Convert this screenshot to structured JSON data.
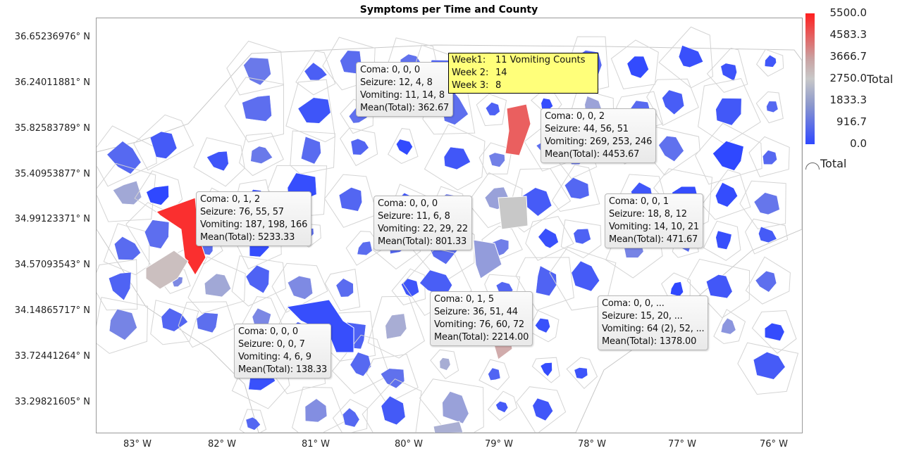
{
  "title": "Symptoms per Time and County",
  "latitude_labels": [
    "36.65236976° N",
    "36.24011881° N",
    "35.82583789° N",
    "35.40953877° N",
    "34.99123371° N",
    "34.57093543° N",
    "34.14865717° N",
    "33.72441264° N",
    "33.29821605° N"
  ],
  "longitude_labels": [
    "83° W",
    "82° W",
    "81° W",
    "80° W",
    "79° W",
    "78° W",
    "77° W",
    "76° W"
  ],
  "legend": {
    "title": "Total",
    "ticks": [
      "5500.0",
      "4583.3",
      "3666.7",
      "2750.0",
      "1833.3",
      "916.7",
      "0.0"
    ],
    "range": [
      0,
      5500
    ],
    "colors": {
      "low": "#2f48ff",
      "mid": "#c8c8c8",
      "high": "#ff1f1f"
    },
    "shape_legend_label": "Total"
  },
  "hover_tip": {
    "lines": [
      [
        "Week1:",
        "11 Vomiting Counts"
      ],
      [
        "Week 2:",
        "14"
      ],
      [
        "Week 3:",
        "8"
      ]
    ]
  },
  "tooltips": [
    {
      "lines": [
        "Coma: 0, 0, 0",
        "Seizure: 12, 4, 8",
        "Vomiting: 11, 14, 8",
        "Mean(Total): 362.67"
      ],
      "mean": 362.67
    },
    {
      "lines": [
        "Coma: 0, 0, 2",
        "Seizure: 44, 56, 51",
        "Vomiting: 269, 253, 246",
        "Mean(Total): 4453.67"
      ],
      "mean": 4453.67
    },
    {
      "lines": [
        "Coma: 0, 1, 2",
        "Seizure: 76, 55, 57",
        "Vomiting: 187, 198, 166",
        "Mean(Total): 5233.33"
      ],
      "mean": 5233.33
    },
    {
      "lines": [
        "Coma: 0, 0, 0",
        "Seizure: 11, 6, 8",
        "Vomiting: 22, 29, 22",
        "Mean(Total): 801.33"
      ],
      "mean": 801.33
    },
    {
      "lines": [
        "Coma: 0, 0, 1",
        "Seizure: 18, 8, 12",
        "Vomiting: 14, 10, 21",
        "Mean(Total): 471.67"
      ],
      "mean": 471.67
    },
    {
      "lines": [
        "Coma: 0, 1, 5",
        "Seizure: 36, 51, 44",
        "Vomiting: 76, 60, 72",
        "Mean(Total): 2214.00"
      ],
      "mean": 2214.0
    },
    {
      "lines": [
        "Coma: 0, 0, ...",
        "Seizure: 15, 20, ...",
        "Vomiting: 64 (2), 52, ...",
        "Mean(Total): 1378.00"
      ],
      "mean": 1378.0
    },
    {
      "lines": [
        "Coma: 0, 0, 0",
        "Seizure: 0, 0, 7",
        "Vomiting: 4, 6, 9",
        "Mean(Total): 138.33"
      ],
      "mean": 138.33
    }
  ]
}
